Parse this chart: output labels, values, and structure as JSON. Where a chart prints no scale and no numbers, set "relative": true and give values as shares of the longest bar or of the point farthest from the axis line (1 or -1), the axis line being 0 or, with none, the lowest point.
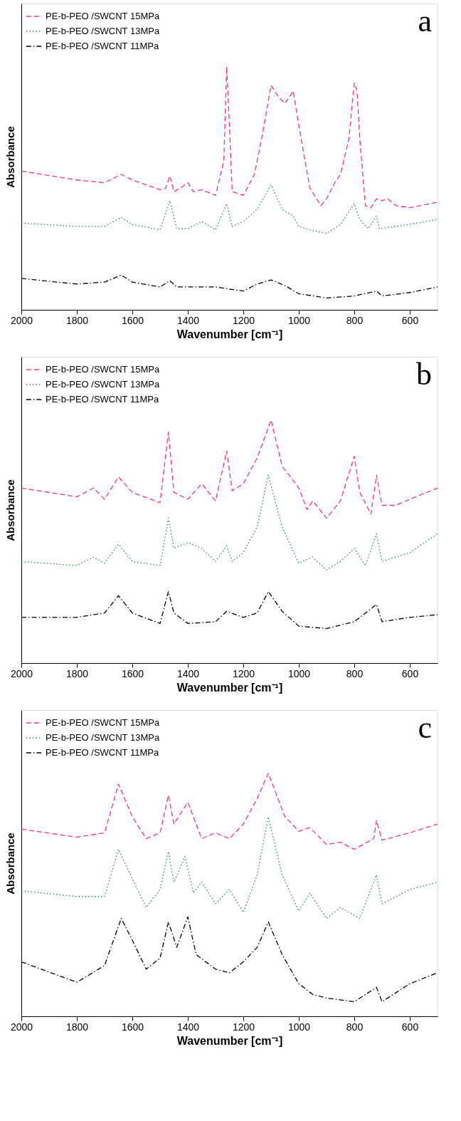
{
  "chart_data": [
    {
      "type": "line",
      "relative": true,
      "xlabel": "Wavenumber [cm⁻¹]",
      "ylabel": "Absorbance",
      "xlim": [
        2000,
        500
      ],
      "xticks": [
        2000,
        1800,
        1600,
        1400,
        1200,
        1000,
        800,
        600
      ],
      "grid": false,
      "legend": "top left",
      "annotations": [
        "a"
      ],
      "series": [
        {
          "name": "PE-b-PEO /SWCNT 15MPa",
          "color": "#ff3377",
          "line_style": "dashed",
          "x": [
            2000,
            1800,
            1700,
            1640,
            1600,
            1500,
            1480,
            1465,
            1450,
            1420,
            1400,
            1380,
            1350,
            1300,
            1270,
            1260,
            1250,
            1240,
            1200,
            1160,
            1130,
            1100,
            1070,
            1050,
            1020,
            1000,
            960,
            920,
            900,
            870,
            850,
            820,
            800,
            790,
            780,
            760,
            740,
            720,
            700,
            680,
            650,
            600,
            500
          ],
          "values": [
            0.571,
            0.534,
            0.523,
            0.557,
            0.534,
            0.494,
            0.5,
            0.551,
            0.486,
            0.506,
            0.523,
            0.486,
            0.494,
            0.471,
            0.614,
            1.0,
            0.757,
            0.486,
            0.471,
            0.557,
            0.729,
            0.923,
            0.871,
            0.849,
            0.9,
            0.757,
            0.5,
            0.429,
            0.457,
            0.523,
            0.557,
            0.7,
            0.934,
            0.9,
            0.7,
            0.429,
            0.42,
            0.457,
            0.449,
            0.457,
            0.429,
            0.42,
            0.443
          ]
        },
        {
          "name": "PE-b-PEO /SWCNT 13MPa",
          "color": "#228b44",
          "line_style": "dotted",
          "x": [
            2000,
            1800,
            1700,
            1640,
            1600,
            1500,
            1465,
            1440,
            1400,
            1350,
            1300,
            1260,
            1240,
            1200,
            1150,
            1100,
            1060,
            1020,
            1000,
            960,
            900,
            850,
            800,
            780,
            750,
            720,
            710,
            650,
            500
          ],
          "values": [
            0.357,
            0.343,
            0.343,
            0.38,
            0.351,
            0.329,
            0.449,
            0.334,
            0.334,
            0.363,
            0.329,
            0.437,
            0.343,
            0.363,
            0.414,
            0.514,
            0.414,
            0.386,
            0.343,
            0.329,
            0.314,
            0.351,
            0.437,
            0.371,
            0.334,
            0.386,
            0.334,
            0.343,
            0.371
          ]
        },
        {
          "name": "PE-b-PEO /SWCNT 11MPa",
          "color": "#000000",
          "line_style": "dashdot",
          "x": [
            2000,
            1800,
            1700,
            1640,
            1600,
            1500,
            1465,
            1440,
            1300,
            1200,
            1150,
            1100,
            1050,
            1000,
            900,
            800,
            720,
            700,
            600,
            500
          ],
          "values": [
            0.129,
            0.106,
            0.114,
            0.143,
            0.114,
            0.094,
            0.12,
            0.094,
            0.094,
            0.077,
            0.106,
            0.123,
            0.1,
            0.066,
            0.049,
            0.057,
            0.077,
            0.057,
            0.071,
            0.094
          ]
        }
      ]
    },
    {
      "type": "line",
      "relative": true,
      "xlabel": "Wavenumber [cm⁻¹]",
      "ylabel": "Absorbance",
      "xlim": [
        2000,
        500
      ],
      "xticks": [
        2000,
        1800,
        1600,
        1400,
        1200,
        1000,
        800,
        600
      ],
      "grid": false,
      "legend": "top left",
      "annotations": [
        "b"
      ],
      "series": [
        {
          "name": "PE-b-PEO /SWCNT 15MPa",
          "color": "#ff3377",
          "line_style": "dashed",
          "x": [
            2000,
            1800,
            1740,
            1700,
            1650,
            1600,
            1500,
            1470,
            1450,
            1400,
            1350,
            1300,
            1260,
            1240,
            1200,
            1150,
            1100,
            1060,
            1030,
            1000,
            970,
            950,
            900,
            850,
            800,
            780,
            740,
            720,
            700,
            650,
            600,
            500
          ],
          "values": [
            0.72,
            0.684,
            0.72,
            0.674,
            0.766,
            0.702,
            0.66,
            0.95,
            0.702,
            0.674,
            0.738,
            0.667,
            0.872,
            0.709,
            0.738,
            0.844,
            1.0,
            0.809,
            0.766,
            0.72,
            0.631,
            0.667,
            0.596,
            0.667,
            0.851,
            0.702,
            0.613,
            0.773,
            0.649,
            0.649,
            0.674,
            0.72
          ]
        },
        {
          "name": "PE-b-PEO /SWCNT 13MPa",
          "color": "#228b44",
          "line_style": "dotted",
          "x": [
            2000,
            1800,
            1740,
            1700,
            1650,
            1600,
            1500,
            1470,
            1450,
            1400,
            1350,
            1300,
            1260,
            1240,
            1200,
            1150,
            1110,
            1060,
            1000,
            950,
            900,
            850,
            800,
            760,
            720,
            700,
            600,
            500
          ],
          "values": [
            0.418,
            0.401,
            0.436,
            0.411,
            0.489,
            0.418,
            0.401,
            0.596,
            0.472,
            0.496,
            0.472,
            0.418,
            0.482,
            0.418,
            0.454,
            0.56,
            0.773,
            0.56,
            0.411,
            0.436,
            0.383,
            0.418,
            0.472,
            0.401,
            0.532,
            0.418,
            0.454,
            0.532
          ]
        },
        {
          "name": "PE-b-PEO /SWCNT 11MPa",
          "color": "#000000",
          "line_style": "dashdot",
          "x": [
            2000,
            1800,
            1700,
            1650,
            1600,
            1500,
            1470,
            1450,
            1400,
            1300,
            1260,
            1200,
            1150,
            1110,
            1060,
            1000,
            900,
            800,
            720,
            700,
            600,
            500
          ],
          "values": [
            0.188,
            0.188,
            0.206,
            0.277,
            0.206,
            0.163,
            0.294,
            0.206,
            0.163,
            0.17,
            0.213,
            0.188,
            0.206,
            0.294,
            0.213,
            0.152,
            0.142,
            0.17,
            0.241,
            0.17,
            0.188,
            0.199
          ]
        }
      ]
    },
    {
      "type": "line",
      "relative": true,
      "xlabel": "Wavenumber [cm⁻¹]",
      "ylabel": "Absorbance",
      "xlim": [
        2000,
        500
      ],
      "xticks": [
        2000,
        1800,
        1600,
        1400,
        1200,
        1000,
        800,
        600
      ],
      "grid": false,
      "legend": "top left",
      "annotations": [
        "c"
      ],
      "series": [
        {
          "name": "PE-b-PEO /SWCNT 15MPa",
          "color": "#ff3377",
          "line_style": "dashed",
          "x": [
            2000,
            1800,
            1700,
            1650,
            1600,
            1550,
            1500,
            1470,
            1450,
            1400,
            1350,
            1300,
            1250,
            1200,
            1150,
            1110,
            1050,
            1000,
            960,
            900,
            850,
            800,
            730,
            720,
            700,
            600,
            500
          ],
          "values": [
            0.77,
            0.737,
            0.755,
            0.955,
            0.821,
            0.731,
            0.755,
            0.91,
            0.791,
            0.881,
            0.731,
            0.755,
            0.731,
            0.791,
            0.896,
            1.0,
            0.821,
            0.761,
            0.776,
            0.707,
            0.716,
            0.687,
            0.731,
            0.806,
            0.725,
            0.755,
            0.791
          ]
        },
        {
          "name": "PE-b-PEO /SWCNT 13MPa",
          "color": "#228b44",
          "line_style": "dotted",
          "x": [
            2000,
            1800,
            1700,
            1650,
            1600,
            1550,
            1500,
            1470,
            1450,
            1410,
            1380,
            1350,
            1300,
            1250,
            1200,
            1150,
            1110,
            1060,
            1000,
            960,
            900,
            850,
            780,
            720,
            700,
            600,
            500
          ],
          "values": [
            0.516,
            0.493,
            0.493,
            0.687,
            0.567,
            0.448,
            0.522,
            0.678,
            0.552,
            0.657,
            0.507,
            0.552,
            0.463,
            0.522,
            0.427,
            0.582,
            0.821,
            0.582,
            0.433,
            0.507,
            0.403,
            0.448,
            0.403,
            0.582,
            0.463,
            0.522,
            0.552
          ]
        },
        {
          "name": "PE-b-PEO /SWCNT 11MPa",
          "color": "#000000",
          "line_style": "dashdot",
          "x": [
            2000,
            1800,
            1700,
            1640,
            1600,
            1550,
            1500,
            1470,
            1440,
            1400,
            1370,
            1300,
            1250,
            1200,
            1150,
            1110,
            1060,
            1000,
            950,
            900,
            800,
            720,
            700,
            600,
            500
          ],
          "values": [
            0.224,
            0.14,
            0.209,
            0.403,
            0.313,
            0.194,
            0.239,
            0.388,
            0.284,
            0.409,
            0.254,
            0.194,
            0.179,
            0.224,
            0.284,
            0.388,
            0.254,
            0.134,
            0.09,
            0.075,
            0.06,
            0.119,
            0.06,
            0.134,
            0.179
          ]
        }
      ]
    }
  ]
}
